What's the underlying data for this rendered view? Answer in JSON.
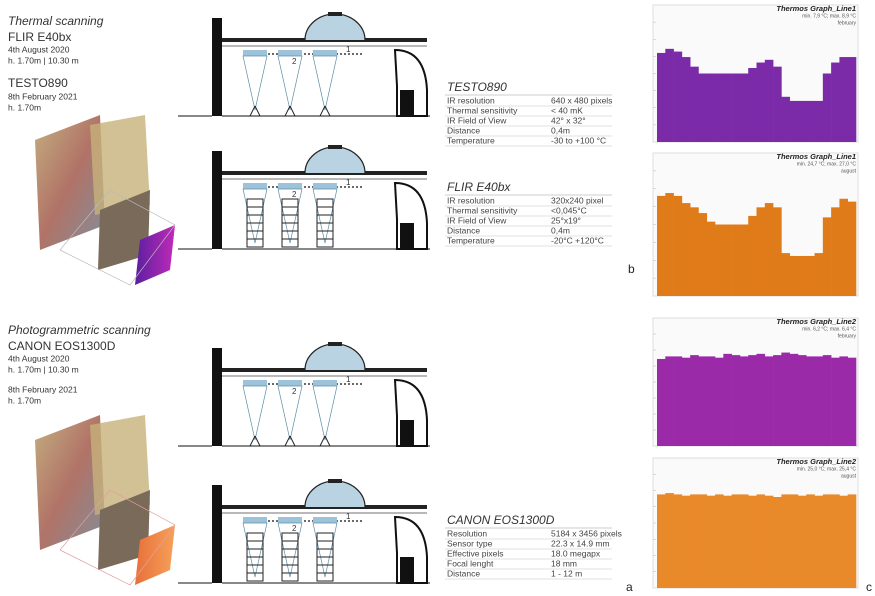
{
  "thermal": {
    "title": "Thermal scanning",
    "camera1": "FLIR E40bx",
    "date1": "4th August 2020",
    "height1": "h. 1.70m | 10.30 m",
    "camera2": "TESTO890",
    "date2": "8th February 2021",
    "height2": "h. 1.70m"
  },
  "photogrammetric": {
    "title": "Photogrammetric scanning",
    "camera": "CANON EOS1300D",
    "date1": "4th August 2020",
    "height1": "h. 1.70m | 10.30 m",
    "date2": "8th February 2021",
    "height2": "h. 1.70m"
  },
  "section_labels": [
    "1",
    "2"
  ],
  "letters": [
    "a",
    "b",
    "c"
  ],
  "tables": [
    {
      "title": "TESTO890",
      "rows": [
        [
          "IR resolution",
          "640 x 480 pixels"
        ],
        [
          "Thermal sensitivity",
          "< 40 mK"
        ],
        [
          "IR Field of View",
          "42° x 32°"
        ],
        [
          "Distance",
          "0,4m"
        ],
        [
          "Temperature",
          "-30 to +100 °C"
        ]
      ]
    },
    {
      "title": "FLIR E40bx",
      "rows": [
        [
          "IR resolution",
          "320x240 pixel"
        ],
        [
          "Thermal sensitivity",
          "<0,045°C"
        ],
        [
          "IR Field of View",
          "25°x19°"
        ],
        [
          "Distance",
          "0,4m"
        ],
        [
          "Temperature",
          "-20°C +120°C"
        ]
      ]
    },
    {
      "title": "CANON EOS1300D",
      "rows": [
        [
          "Resolution",
          "5184 x 3456 pixels"
        ],
        [
          "Sensor type",
          "22.3 x 14.9 mm"
        ],
        [
          "Effective pixels",
          "18.0 megapx"
        ],
        [
          "Focal lenght",
          "18 mm"
        ],
        [
          "Distance",
          "1 - 12 m"
        ]
      ]
    }
  ],
  "chart_data": [
    {
      "type": "bar",
      "title": "Thermos Graph_Line1",
      "subtitle": "min. 7,9 °C; max. 8,9 °C",
      "note": "february",
      "color": "#7b2aa8",
      "ylim": [
        0,
        100
      ],
      "values": [
        65,
        68,
        66,
        62,
        55,
        50,
        50,
        50,
        50,
        50,
        50,
        54,
        58,
        60,
        55,
        33,
        30,
        30,
        30,
        30,
        50,
        58,
        62,
        62
      ]
    },
    {
      "type": "bar",
      "title": "Thermos Graph_Line1",
      "subtitle": "min. 24,7 °C; max. 27,0 °C",
      "note": "august",
      "color": "#e07b1a",
      "ylim": [
        0,
        100
      ],
      "values": [
        70,
        72,
        70,
        65,
        62,
        58,
        52,
        50,
        50,
        50,
        50,
        56,
        62,
        65,
        62,
        30,
        28,
        28,
        28,
        30,
        55,
        62,
        68,
        66
      ]
    },
    {
      "type": "bar",
      "title": "Thermos Graph_Line2",
      "subtitle": "min. 6,2 °C; max. 6,4 °C",
      "note": "february",
      "color": "#9a2aa8",
      "ylim": [
        0,
        100
      ],
      "values": [
        68,
        70,
        70,
        69,
        71,
        70,
        70,
        69,
        72,
        71,
        70,
        71,
        72,
        70,
        71,
        73,
        72,
        71,
        70,
        70,
        71,
        69,
        70,
        69
      ]
    },
    {
      "type": "bar",
      "title": "Thermos Graph_Line2",
      "subtitle": "min. 25,0 °C; max. 25,4 °C",
      "note": "august",
      "color": "#e8892a",
      "ylim": [
        0,
        100
      ],
      "values": [
        72,
        73,
        72,
        71,
        72,
        72,
        71,
        72,
        71,
        72,
        72,
        71,
        72,
        71,
        70,
        72,
        72,
        71,
        72,
        71,
        72,
        72,
        71,
        72
      ]
    }
  ]
}
